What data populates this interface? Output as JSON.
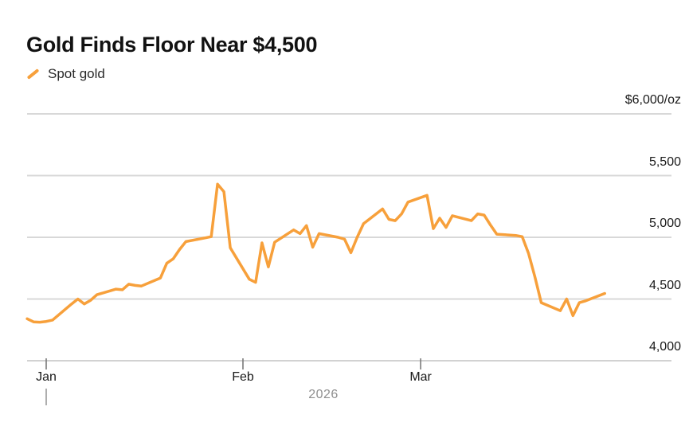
{
  "header": {
    "title": "Gold Finds Floor Near $4,500"
  },
  "legend": {
    "items": [
      {
        "label": "Spot gold",
        "color": "#F7A03B",
        "marker": "slash-icon"
      }
    ]
  },
  "colors": {
    "background": "#ffffff",
    "title_text": "#121212",
    "legend_text": "#2a2a2a",
    "line": "#F7A03B",
    "grid": "#d8d8d8",
    "axis_line": "#d2d2d2",
    "tick": "#7a7a7a",
    "axis_text": "#1a1a1a",
    "muted_text": "#8f8f8f"
  },
  "chart_data": {
    "type": "line",
    "title": "Gold Finds Floor Near $4,500",
    "grid": "horizontal",
    "legend_position": "top-left",
    "y_axis": {
      "range": [
        4000,
        6000
      ],
      "unit": "USD per ounce",
      "ticks": [
        {
          "label": "$6,000/oz",
          "value": 6000
        },
        {
          "label": "5,500",
          "value": 5500
        },
        {
          "label": "5,000",
          "value": 5000
        },
        {
          "label": "4,500",
          "value": 4500
        },
        {
          "label": "4,000",
          "value": 4000
        }
      ]
    },
    "x_axis": {
      "range_days": [
        0,
        91
      ],
      "ticks": [
        {
          "label": "Jan",
          "day": 3
        },
        {
          "label": "Feb",
          "day": 34
        },
        {
          "label": "Mar",
          "day": 62
        }
      ],
      "year_label": "2026",
      "year_marker_day": 3
    },
    "point_format": {
      "d": "date",
      "t": "days since Dec 29",
      "v": "spot price USD/oz (estimated from gridlines)"
    },
    "series": [
      {
        "name": "Spot gold",
        "color": "#F7A03B",
        "points": [
          {
            "d": "Dec 29",
            "t": 0,
            "v": 4340
          },
          {
            "d": "Dec 30",
            "t": 1,
            "v": 4315
          },
          {
            "d": "Dec 31",
            "t": 2,
            "v": 4312
          },
          {
            "d": "Jan 1",
            "t": 3,
            "v": 4318
          },
          {
            "d": "Jan 2",
            "t": 4,
            "v": 4330
          },
          {
            "d": "Jan 5",
            "t": 7,
            "v": 4460
          },
          {
            "d": "Jan 6",
            "t": 8,
            "v": 4500
          },
          {
            "d": "Jan 7",
            "t": 9,
            "v": 4460
          },
          {
            "d": "Jan 8",
            "t": 10,
            "v": 4490
          },
          {
            "d": "Jan 9",
            "t": 11,
            "v": 4535
          },
          {
            "d": "Jan 12",
            "t": 14,
            "v": 4580
          },
          {
            "d": "Jan 13",
            "t": 15,
            "v": 4575
          },
          {
            "d": "Jan 14",
            "t": 16,
            "v": 4620
          },
          {
            "d": "Jan 15",
            "t": 17,
            "v": 4610
          },
          {
            "d": "Jan 16",
            "t": 18,
            "v": 4605
          },
          {
            "d": "Jan 19",
            "t": 21,
            "v": 4670
          },
          {
            "d": "Jan 20",
            "t": 22,
            "v": 4790
          },
          {
            "d": "Jan 21",
            "t": 23,
            "v": 4825
          },
          {
            "d": "Jan 22",
            "t": 24,
            "v": 4900
          },
          {
            "d": "Jan 23",
            "t": 25,
            "v": 4965
          },
          {
            "d": "Jan 26",
            "t": 28,
            "v": 4995
          },
          {
            "d": "Jan 27",
            "t": 29,
            "v": 5005
          },
          {
            "d": "Jan 28",
            "t": 30,
            "v": 5430
          },
          {
            "d": "Jan 29",
            "t": 31,
            "v": 5370
          },
          {
            "d": "Jan 30",
            "t": 32,
            "v": 4915
          },
          {
            "d": "Feb 2",
            "t": 35,
            "v": 4660
          },
          {
            "d": "Feb 3",
            "t": 36,
            "v": 4635
          },
          {
            "d": "Feb 4",
            "t": 37,
            "v": 4955
          },
          {
            "d": "Feb 5",
            "t": 38,
            "v": 4760
          },
          {
            "d": "Feb 6",
            "t": 39,
            "v": 4960
          },
          {
            "d": "Feb 9",
            "t": 42,
            "v": 5060
          },
          {
            "d": "Feb 10",
            "t": 43,
            "v": 5030
          },
          {
            "d": "Feb 11",
            "t": 44,
            "v": 5095
          },
          {
            "d": "Feb 12",
            "t": 45,
            "v": 4920
          },
          {
            "d": "Feb 13",
            "t": 46,
            "v": 5030
          },
          {
            "d": "Feb 16",
            "t": 49,
            "v": 5000
          },
          {
            "d": "Feb 17",
            "t": 50,
            "v": 4985
          },
          {
            "d": "Feb 18",
            "t": 51,
            "v": 4875
          },
          {
            "d": "Feb 19",
            "t": 52,
            "v": 5000
          },
          {
            "d": "Feb 20",
            "t": 53,
            "v": 5110
          },
          {
            "d": "Feb 23",
            "t": 56,
            "v": 5230
          },
          {
            "d": "Feb 24",
            "t": 57,
            "v": 5145
          },
          {
            "d": "Feb 25",
            "t": 58,
            "v": 5135
          },
          {
            "d": "Feb 26",
            "t": 59,
            "v": 5190
          },
          {
            "d": "Feb 27",
            "t": 60,
            "v": 5285
          },
          {
            "d": "Mar 2",
            "t": 63,
            "v": 5340
          },
          {
            "d": "Mar 3",
            "t": 64,
            "v": 5070
          },
          {
            "d": "Mar 4",
            "t": 65,
            "v": 5155
          },
          {
            "d": "Mar 5",
            "t": 66,
            "v": 5080
          },
          {
            "d": "Mar 6",
            "t": 67,
            "v": 5175
          },
          {
            "d": "Mar 9",
            "t": 70,
            "v": 5135
          },
          {
            "d": "Mar 10",
            "t": 71,
            "v": 5190
          },
          {
            "d": "Mar 11",
            "t": 72,
            "v": 5180
          },
          {
            "d": "Mar 12",
            "t": 73,
            "v": 5100
          },
          {
            "d": "Mar 13",
            "t": 74,
            "v": 5025
          },
          {
            "d": "Mar 16",
            "t": 77,
            "v": 5015
          },
          {
            "d": "Mar 17",
            "t": 78,
            "v": 5005
          },
          {
            "d": "Mar 18",
            "t": 79,
            "v": 4870
          },
          {
            "d": "Mar 19",
            "t": 80,
            "v": 4680
          },
          {
            "d": "Mar 20",
            "t": 81,
            "v": 4470
          },
          {
            "d": "Mar 23",
            "t": 84,
            "v": 4405
          },
          {
            "d": "Mar 24",
            "t": 85,
            "v": 4500
          },
          {
            "d": "Mar 25",
            "t": 86,
            "v": 4365
          },
          {
            "d": "Mar 26",
            "t": 87,
            "v": 4470
          },
          {
            "d": "Mar 27",
            "t": 88,
            "v": 4485
          },
          {
            "d": "Mar 30",
            "t": 91,
            "v": 4545
          }
        ]
      }
    ]
  }
}
